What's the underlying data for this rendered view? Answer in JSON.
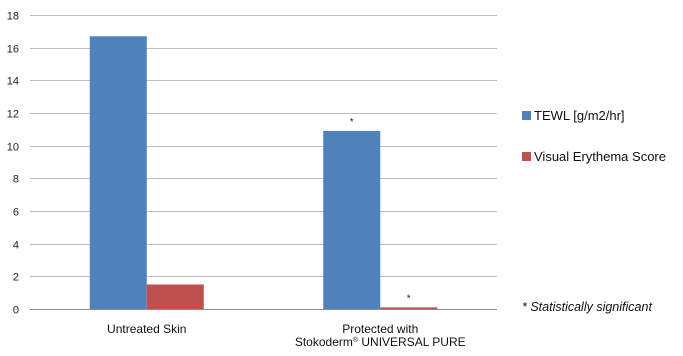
{
  "chart_data": {
    "type": "bar",
    "title": "",
    "xlabel": "",
    "ylabel": "",
    "ylim": [
      0,
      18
    ],
    "yticks": [
      0,
      2,
      4,
      6,
      8,
      10,
      12,
      14,
      16,
      18
    ],
    "grid": true,
    "legend_position": "right",
    "categories": [
      {
        "line1": "Untreated Skin",
        "line2": "",
        "sup": "",
        "line2_rest": ""
      },
      {
        "line1": "Protected with",
        "line2": "Stokoderm",
        "sup": "®",
        "line2_rest": " UNIVERSAL PURE"
      }
    ],
    "series": [
      {
        "name": "TEWL [g/m2/hr]",
        "color": "#4F81BD",
        "values": [
          16.7,
          10.9
        ],
        "markers": [
          "",
          "*"
        ]
      },
      {
        "name": "Visual Erythema Score",
        "color": "#C0504D",
        "values": [
          1.5,
          0.1
        ],
        "markers": [
          "",
          "*"
        ]
      }
    ],
    "annotation": "* Statistically significant"
  },
  "colors": {
    "grid": "#BFBFBF",
    "axis": "#8C8C8C"
  }
}
